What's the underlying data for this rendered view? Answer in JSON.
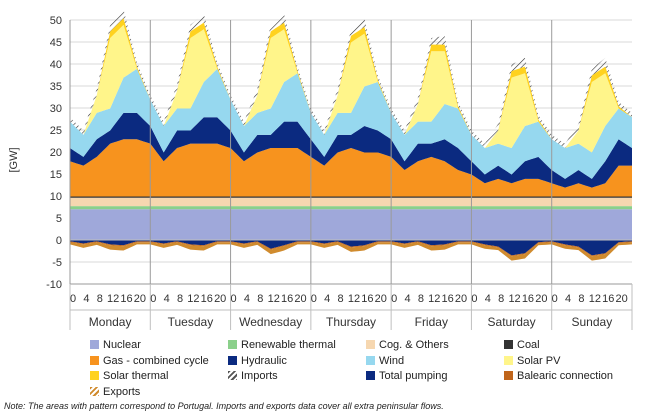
{
  "chart_data": {
    "type": "area",
    "ylabel": "[GW]",
    "ylim": [
      -10,
      50
    ],
    "yticks": [
      -10,
      -5,
      0,
      5,
      10,
      15,
      20,
      25,
      30,
      35,
      40,
      45,
      50
    ],
    "grid": true,
    "legend_position": "bottom",
    "days": [
      "Monday",
      "Tuesday",
      "Wednesday",
      "Thursday",
      "Friday",
      "Saturday",
      "Sunday"
    ],
    "hour_ticks": [
      "0",
      "4",
      "8",
      "12",
      "16",
      "20"
    ],
    "x_unit": "hour of week (0-168)",
    "series_points": [
      {
        "name": "Nuclear",
        "color": "#9fa8da",
        "x": [
          0,
          168
        ],
        "values": [
          7.0,
          7.0
        ]
      },
      {
        "name": "Renewable thermal",
        "color": "#8bd08b",
        "x": [
          0,
          168
        ],
        "values": [
          0.7,
          0.7
        ]
      },
      {
        "name": "Cog. & Others",
        "color": "#f6d7b0",
        "x": [
          0,
          168
        ],
        "values": [
          1.9,
          1.9
        ]
      },
      {
        "name": "Coal",
        "color": "#333333",
        "x": [
          0,
          168
        ],
        "values": [
          0.3,
          0.3
        ]
      },
      {
        "name": "Gas - combined cycle",
        "color": "#f7931e",
        "x": [
          0,
          4,
          8,
          12,
          16,
          20,
          24,
          28,
          32,
          36,
          40,
          44,
          48,
          52,
          56,
          60,
          64,
          68,
          72,
          76,
          80,
          84,
          88,
          92,
          96,
          100,
          104,
          108,
          112,
          116,
          120,
          124,
          128,
          132,
          136,
          140,
          144,
          148,
          152,
          156,
          160,
          164,
          168
        ],
        "values": [
          8,
          7,
          9,
          12,
          13,
          13,
          12,
          8,
          11,
          12,
          12,
          12,
          11,
          8,
          10,
          11,
          11,
          11,
          9,
          7,
          10,
          11,
          10,
          10,
          9,
          6,
          8,
          9,
          8,
          6,
          5,
          3,
          4,
          3,
          4,
          4,
          3,
          2,
          3,
          2,
          3,
          7,
          7
        ]
      },
      {
        "name": "Hydraulic",
        "color": "#0b2a80",
        "x": [
          0,
          4,
          8,
          12,
          16,
          20,
          24,
          28,
          32,
          36,
          40,
          44,
          48,
          52,
          56,
          60,
          64,
          68,
          72,
          76,
          80,
          84,
          88,
          92,
          96,
          100,
          104,
          108,
          112,
          116,
          120,
          124,
          128,
          132,
          136,
          140,
          144,
          148,
          152,
          156,
          160,
          164,
          168
        ],
        "values": [
          3,
          2,
          4,
          3,
          6,
          6,
          4,
          2,
          4,
          3,
          6,
          6,
          4,
          2,
          4,
          3,
          6,
          6,
          4,
          2,
          4,
          3,
          6,
          5,
          4,
          2,
          4,
          3,
          5,
          5,
          3,
          2,
          3,
          2,
          4,
          5,
          3,
          2,
          3,
          2,
          5,
          6,
          4
        ]
      },
      {
        "name": "Wind",
        "color": "#96d8ef",
        "x": [
          0,
          4,
          8,
          12,
          16,
          20,
          24,
          28,
          32,
          36,
          40,
          44,
          48,
          52,
          56,
          60,
          64,
          68,
          72,
          76,
          80,
          84,
          88,
          92,
          96,
          100,
          104,
          108,
          112,
          116,
          120,
          124,
          128,
          132,
          136,
          140,
          144,
          148,
          152,
          156,
          160,
          164,
          168
        ],
        "values": [
          6,
          5,
          6,
          5,
          8,
          10,
          6,
          6,
          5,
          5,
          8,
          11,
          7,
          6,
          5,
          6,
          9,
          11,
          6,
          5,
          5,
          5,
          9,
          11,
          6,
          6,
          5,
          5,
          8,
          9,
          6,
          6,
          5,
          6,
          8,
          8,
          7,
          7,
          6,
          6,
          8,
          7,
          7
        ]
      },
      {
        "name": "Solar PV",
        "color": "#fff58a",
        "x": [
          0,
          4,
          8,
          12,
          16,
          20,
          24,
          28,
          32,
          36,
          40,
          44,
          48,
          52,
          56,
          60,
          64,
          68,
          72,
          76,
          80,
          84,
          88,
          92,
          96,
          100,
          104,
          108,
          112,
          116,
          120,
          124,
          128,
          132,
          136,
          140,
          144,
          148,
          152,
          156,
          160,
          164,
          168
        ],
        "values": [
          0,
          0,
          4,
          16,
          12,
          0,
          0,
          0,
          4,
          16,
          12,
          0,
          0,
          0,
          4,
          16,
          12,
          0,
          0,
          0,
          4,
          16,
          12,
          0,
          0,
          0,
          4,
          16,
          12,
          0,
          0,
          0,
          3,
          16,
          12,
          0,
          0,
          0,
          3,
          16,
          12,
          0,
          0
        ]
      },
      {
        "name": "Solar thermal",
        "color": "#ffd21f",
        "x": [
          0,
          4,
          8,
          12,
          16,
          20,
          24,
          28,
          32,
          36,
          40,
          44,
          48,
          52,
          56,
          60,
          64,
          68,
          72,
          76,
          80,
          84,
          88,
          92,
          96,
          100,
          104,
          108,
          112,
          116,
          120,
          124,
          128,
          132,
          136,
          140,
          144,
          148,
          152,
          156,
          160,
          164,
          168
        ],
        "values": [
          0,
          0,
          0,
          1.5,
          1.5,
          0.5,
          0,
          0,
          0,
          1.5,
          1.5,
          0.5,
          0,
          0,
          0,
          1.5,
          1.5,
          0.5,
          0,
          0,
          0,
          1.5,
          1.5,
          0.5,
          0,
          0,
          0,
          1.5,
          1.5,
          0.5,
          0,
          0,
          0,
          1.5,
          1.5,
          0.5,
          0,
          0,
          0,
          1.5,
          1.5,
          0.5,
          0
        ]
      },
      {
        "name": "Imports",
        "color": "#999999",
        "x": [
          0,
          4,
          8,
          12,
          16,
          20,
          24,
          28,
          32,
          36,
          40,
          44,
          48,
          52,
          56,
          60,
          64,
          68,
          72,
          76,
          80,
          84,
          88,
          92,
          96,
          100,
          104,
          108,
          112,
          116,
          120,
          124,
          128,
          132,
          136,
          140,
          144,
          148,
          152,
          156,
          160,
          164,
          168
        ],
        "values": [
          1,
          1,
          1.5,
          1.5,
          2,
          1,
          1,
          1,
          1.5,
          1.5,
          2,
          1,
          1,
          1,
          1.5,
          1.5,
          2,
          1,
          1,
          1,
          1.5,
          1.5,
          2,
          1,
          1,
          1,
          1.5,
          1.5,
          2,
          1,
          1,
          1,
          1.5,
          1.5,
          2,
          1,
          1,
          1,
          1.5,
          1.5,
          2,
          1,
          1
        ]
      },
      {
        "name": "Total pumping",
        "color": "#0b2a80",
        "x": [
          0,
          4,
          8,
          12,
          16,
          20,
          24,
          28,
          32,
          36,
          40,
          44,
          48,
          52,
          56,
          60,
          64,
          68,
          72,
          76,
          80,
          84,
          88,
          92,
          96,
          100,
          104,
          108,
          112,
          116,
          120,
          124,
          128,
          132,
          136,
          140,
          144,
          148,
          152,
          156,
          160,
          164,
          168
        ],
        "values": [
          -0.3,
          -0.8,
          -0.3,
          -1,
          -1.2,
          -0.3,
          -0.3,
          -0.8,
          -0.3,
          -1,
          -1.2,
          -0.3,
          -0.3,
          -0.8,
          -0.3,
          -2,
          -1.2,
          -0.3,
          -0.3,
          -0.8,
          -0.3,
          -1.5,
          -1.2,
          -0.3,
          -0.3,
          -0.8,
          -0.3,
          -1.2,
          -1,
          -0.3,
          -0.3,
          -1,
          -1.5,
          -3.5,
          -3,
          -0.5,
          -0.3,
          -1,
          -1.5,
          -3.5,
          -3,
          -0.5,
          -0.3
        ]
      },
      {
        "name": "Balearic connection",
        "color": "#c0651b",
        "x": [
          0,
          168
        ],
        "values": [
          -0.2,
          -0.2
        ]
      },
      {
        "name": "Exports",
        "color": "#d08b2e",
        "x": [
          0,
          4,
          8,
          12,
          16,
          20,
          24,
          28,
          32,
          36,
          40,
          44,
          48,
          52,
          56,
          60,
          64,
          68,
          72,
          76,
          80,
          84,
          88,
          92,
          96,
          100,
          104,
          108,
          112,
          116,
          120,
          124,
          128,
          132,
          136,
          140,
          144,
          148,
          152,
          156,
          160,
          164,
          168
        ],
        "values": [
          -0.5,
          -0.8,
          -0.6,
          -1,
          -1,
          -0.5,
          -0.5,
          -0.8,
          -0.6,
          -1,
          -1,
          -0.5,
          -0.5,
          -0.8,
          -0.6,
          -1,
          -1,
          -0.5,
          -0.5,
          -0.8,
          -0.6,
          -1,
          -1,
          -0.5,
          -0.5,
          -0.8,
          -0.6,
          -1,
          -1,
          -0.5,
          -0.5,
          -0.8,
          -0.6,
          -1,
          -1,
          -0.5,
          -0.5,
          -0.8,
          -0.6,
          -1,
          -1,
          -0.5,
          -0.5
        ]
      }
    ]
  },
  "legend": [
    {
      "label": "Nuclear",
      "color": "#9fa8da"
    },
    {
      "label": "Renewable thermal",
      "color": "#8bd08b"
    },
    {
      "label": "Cog. & Others",
      "color": "#f6d7b0"
    },
    {
      "label": "Coal",
      "color": "#333333"
    },
    {
      "label": "Gas - combined cycle",
      "color": "#f7931e"
    },
    {
      "label": "Hydraulic",
      "color": "#0b2a80"
    },
    {
      "label": "Wind",
      "color": "#96d8ef"
    },
    {
      "label": "Solar PV",
      "color": "#fff58a"
    },
    {
      "label": "Solar thermal",
      "color": "#ffd21f"
    },
    {
      "label": "Imports",
      "color": "#555555",
      "pattern": true
    },
    {
      "label": "Total pumping",
      "color": "#0b2a80"
    },
    {
      "label": "Balearic connection",
      "color": "#c0651b"
    },
    {
      "label": "Exports",
      "color": "#d08b2e",
      "pattern": true
    }
  ],
  "note": "Note: The areas with pattern correspond to Portugal. Imports and exports data cover all extra peninsular flows."
}
